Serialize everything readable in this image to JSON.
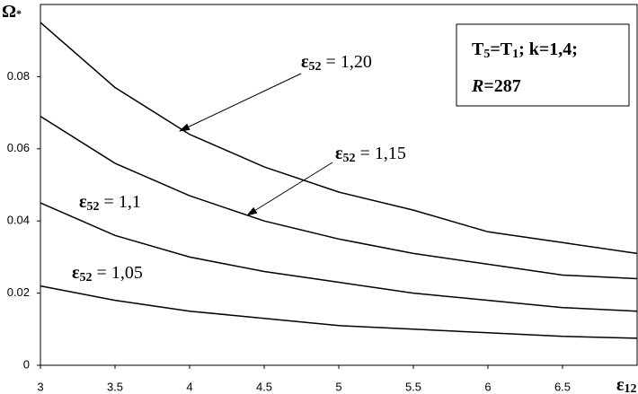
{
  "chart_data": {
    "type": "line",
    "y_label": {
      "symbol": "Ω",
      "subscript": "*"
    },
    "x_label": {
      "symbol": "ε",
      "subscript": "12"
    },
    "x": [
      3,
      3.5,
      4,
      4.5,
      5,
      5.5,
      6,
      6.5,
      7
    ],
    "xlim": [
      3,
      7
    ],
    "xticks": [
      3,
      3.5,
      4,
      4.5,
      5,
      5.5,
      6,
      6.5
    ],
    "ylim": [
      0,
      0.1
    ],
    "yticks": [
      0,
      0.02,
      0.04,
      0.06,
      0.08
    ],
    "color": "#000000",
    "series": [
      {
        "label": {
          "symbol": "ε",
          "subscript": "52",
          "text": " = 1,20"
        },
        "values": [
          0.095,
          0.077,
          0.064,
          0.055,
          0.048,
          0.043,
          0.037,
          0.034,
          0.031
        ]
      },
      {
        "label": {
          "symbol": "ε",
          "subscript": "52",
          "text": " = 1,15"
        },
        "values": [
          0.069,
          0.056,
          0.047,
          0.04,
          0.035,
          0.031,
          0.028,
          0.025,
          0.024
        ]
      },
      {
        "label": {
          "symbol": "ε",
          "subscript": "52",
          "text": " = 1,1"
        },
        "values": [
          0.045,
          0.036,
          0.03,
          0.026,
          0.023,
          0.02,
          0.018,
          0.016,
          0.015
        ]
      },
      {
        "label": {
          "symbol": "ε",
          "subscript": "52",
          "text": " = 1,05"
        },
        "values": [
          0.022,
          0.018,
          0.015,
          0.013,
          0.011,
          0.01,
          0.009,
          0.008,
          0.0075
        ]
      }
    ],
    "note": {
      "line1": [
        "T",
        "5",
        "=T",
        "1",
        "; k=1,4;"
      ],
      "line2": [
        "R",
        "=287"
      ]
    }
  }
}
